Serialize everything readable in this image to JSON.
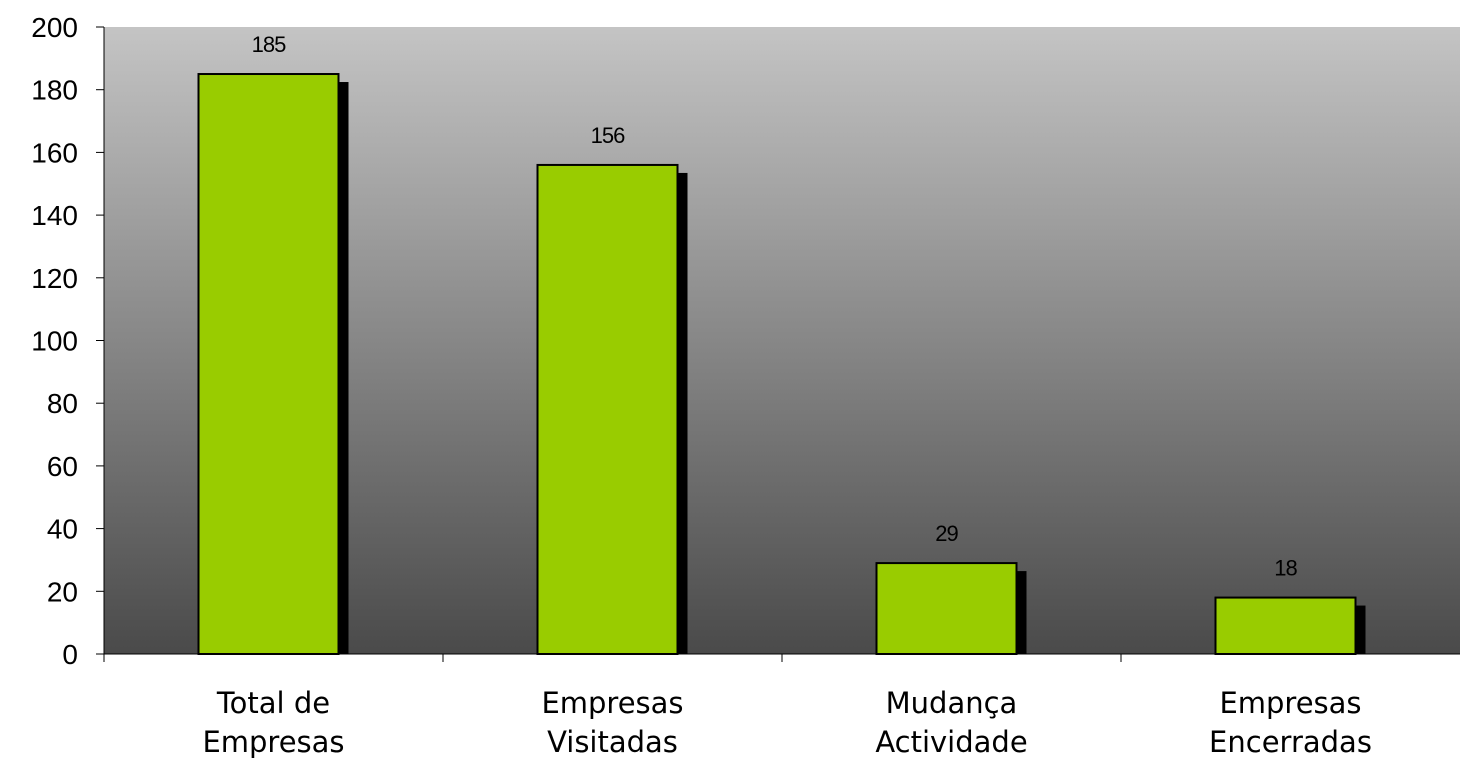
{
  "chart_data": {
    "type": "bar",
    "categories": [
      [
        "Total de",
        "Empresas"
      ],
      [
        "Empresas",
        "Visitadas"
      ],
      [
        "Mudança",
        "Actividade"
      ],
      [
        "Empresas",
        "Encerradas"
      ]
    ],
    "values": [
      185,
      156,
      29,
      18
    ],
    "data_labels": [
      "185",
      "156",
      "29",
      "18"
    ],
    "ylim": [
      0,
      200
    ],
    "yticks": [
      0,
      20,
      40,
      60,
      80,
      100,
      120,
      140,
      160,
      180,
      200
    ],
    "ytick_labels": [
      "0",
      "20",
      "40",
      "60",
      "80",
      "100",
      "120",
      "140",
      "160",
      "180",
      "200"
    ],
    "colors": {
      "bar": "#99cc00",
      "bar_shadow": "#000000",
      "bar_border": "#000000",
      "plot_top": "#c4c4c4",
      "plot_bottom": "#4a4a4a"
    },
    "legend": "none",
    "grid": false
  }
}
